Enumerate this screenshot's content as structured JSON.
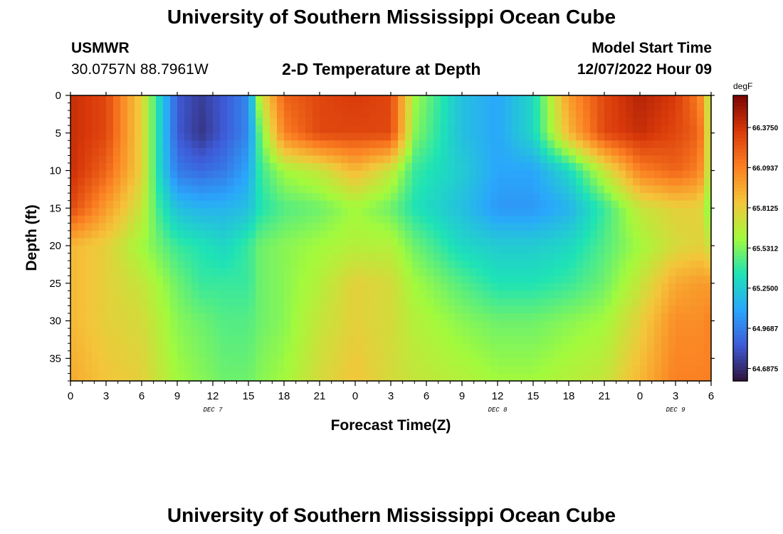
{
  "page": {
    "title_top": "University of Southern Mississippi Ocean Cube",
    "title_bottom": "University of Southern Mississippi Ocean Cube"
  },
  "header": {
    "station": "USMWR",
    "coords": "30.0757N  88.7961W",
    "subtitle": "2-D Temperature at Depth",
    "model_start_label": "Model Start Time",
    "model_start_value": "12/07/2022 Hour 09"
  },
  "chart_data": {
    "type": "heatmap",
    "title": "2-D Temperature at Depth",
    "xlabel": "Forecast Time(Z)",
    "ylabel": "Depth (ft)",
    "colorbar_unit": "degF",
    "x_ticks": [
      "0",
      "3",
      "6",
      "9",
      "12",
      "15",
      "18",
      "21",
      "0",
      "3",
      "6",
      "9",
      "12",
      "15",
      "18",
      "21",
      "0",
      "3",
      "6"
    ],
    "x_range_hours": [
      0,
      54
    ],
    "day_labels": [
      {
        "text": "DEC 7",
        "hour": 12
      },
      {
        "text": "DEC 8",
        "hour": 36
      },
      {
        "text": "DEC 9",
        "hour": 51
      }
    ],
    "y_ticks": [
      0,
      5,
      10,
      15,
      20,
      25,
      30,
      35
    ],
    "y_range": [
      0,
      38
    ],
    "y_inverted": true,
    "colorbar_ticks": [
      "66.3750",
      "66.0937",
      "65.8125",
      "65.5312",
      "65.2500",
      "64.9687",
      "64.6875"
    ],
    "value_range": [
      64.6,
      66.6
    ],
    "colormap": [
      "#30123b",
      "#3e5bd8",
      "#2aa7fc",
      "#1ee3b5",
      "#a3fa3c",
      "#f4c53a",
      "#fb8022",
      "#d9390a",
      "#7a0403"
    ],
    "data": {
      "depths_ft": [
        0,
        5,
        10,
        15,
        20,
        25,
        30,
        38
      ],
      "hours": [
        0,
        3,
        6,
        7.5,
        9,
        11,
        13,
        15,
        16,
        18,
        21,
        24,
        27,
        29,
        33,
        36,
        39,
        42,
        45,
        48,
        51,
        53,
        54
      ],
      "values": [
        [
          66.4,
          66.3,
          65.8,
          65.3,
          64.85,
          64.75,
          64.85,
          65.0,
          65.7,
          66.2,
          66.3,
          66.35,
          66.3,
          65.6,
          65.2,
          65.1,
          65.3,
          66.0,
          66.3,
          66.45,
          66.35,
          66.1,
          65.6
        ],
        [
          66.4,
          66.3,
          65.8,
          65.3,
          64.85,
          64.72,
          64.85,
          65.0,
          65.5,
          66.1,
          66.3,
          66.3,
          66.3,
          65.55,
          65.2,
          65.1,
          65.3,
          65.9,
          66.3,
          66.4,
          66.3,
          66.2,
          65.6
        ],
        [
          66.4,
          66.2,
          65.8,
          65.3,
          64.95,
          64.9,
          64.95,
          65.1,
          65.4,
          65.6,
          65.7,
          65.9,
          65.7,
          65.4,
          65.25,
          65.1,
          65.1,
          65.3,
          65.7,
          66.1,
          66.2,
          66.1,
          65.6
        ],
        [
          66.3,
          66.0,
          65.7,
          65.4,
          65.2,
          65.15,
          65.15,
          65.2,
          65.35,
          65.45,
          65.5,
          65.6,
          65.5,
          65.35,
          65.2,
          65.05,
          65.05,
          65.15,
          65.4,
          65.7,
          65.8,
          65.8,
          65.5
        ],
        [
          65.9,
          65.8,
          65.6,
          65.5,
          65.4,
          65.35,
          65.3,
          65.4,
          65.5,
          65.55,
          65.6,
          65.65,
          65.65,
          65.5,
          65.3,
          65.25,
          65.25,
          65.3,
          65.45,
          65.6,
          65.75,
          65.8,
          65.7
        ],
        [
          65.9,
          65.8,
          65.7,
          65.6,
          65.5,
          65.4,
          65.4,
          65.4,
          65.5,
          65.55,
          65.65,
          65.8,
          65.75,
          65.6,
          65.45,
          65.35,
          65.35,
          65.4,
          65.5,
          65.7,
          65.95,
          66.0,
          66.0
        ],
        [
          65.9,
          65.8,
          65.75,
          65.65,
          65.55,
          65.5,
          65.45,
          65.45,
          65.5,
          65.55,
          65.7,
          65.8,
          65.75,
          65.65,
          65.55,
          65.5,
          65.5,
          65.55,
          65.6,
          65.8,
          66.05,
          66.05,
          66.1
        ],
        [
          65.95,
          65.85,
          65.8,
          65.7,
          65.6,
          65.55,
          65.5,
          65.5,
          65.55,
          65.6,
          65.75,
          65.85,
          65.75,
          65.7,
          65.65,
          65.6,
          65.6,
          65.65,
          65.7,
          65.9,
          66.1,
          66.1,
          66.1
        ]
      ]
    }
  }
}
